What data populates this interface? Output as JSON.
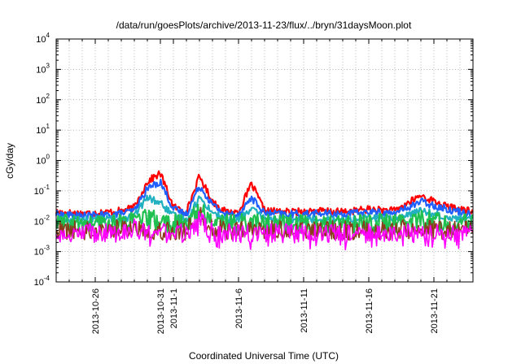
{
  "chart_data": {
    "type": "line",
    "title": "/data/run/goesPlots/archive/2013-11-23/flux/../bryn/31daysMoon.plot",
    "xlabel": "Coordinated Universal Time (UTC)",
    "ylabel": "cGy/day",
    "y_scale": "log",
    "ylim": [
      0.0001,
      10000
    ],
    "y_ticks": [
      {
        "mantissa": "10",
        "exponent": "-4",
        "value": 0.0001
      },
      {
        "mantissa": "10",
        "exponent": "-3",
        "value": 0.001
      },
      {
        "mantissa": "10",
        "exponent": "-2",
        "value": 0.01
      },
      {
        "mantissa": "10",
        "exponent": "-1",
        "value": 0.1
      },
      {
        "mantissa": "10",
        "exponent": "0",
        "value": 1
      },
      {
        "mantissa": "10",
        "exponent": "1",
        "value": 10
      },
      {
        "mantissa": "10",
        "exponent": "2",
        "value": 100
      },
      {
        "mantissa": "10",
        "exponent": "3",
        "value": 1000
      },
      {
        "mantissa": "10",
        "exponent": "4",
        "value": 10000
      }
    ],
    "xlim": [
      "2013-10-23",
      "2013-11-24"
    ],
    "x_ticks": [
      "2013-10-26",
      "2013-10-31",
      "2013-11-1",
      "2013-11-6",
      "2013-11-11",
      "2013-11-16",
      "2013-11-21"
    ],
    "grid": true,
    "series": [
      {
        "color": "#ff0000",
        "points": [
          [
            "2013-10-23",
            0.02
          ],
          [
            "2013-10-25",
            0.018
          ],
          [
            "2013-10-27",
            0.02
          ],
          [
            "2013-10-28",
            0.022
          ],
          [
            "2013-10-29",
            0.028
          ],
          [
            "2013-10-30",
            0.2
          ],
          [
            "2013-10-31",
            0.38
          ],
          [
            "2013-11-1",
            0.03
          ],
          [
            "2013-11-2",
            0.02
          ],
          [
            "2013-11-3",
            0.3
          ],
          [
            "2013-11-4",
            0.045
          ],
          [
            "2013-11-5",
            0.02
          ],
          [
            "2013-11-6",
            0.02
          ],
          [
            "2013-11-7",
            0.17
          ],
          [
            "2013-11-8",
            0.022
          ],
          [
            "2013-11-10",
            0.02
          ],
          [
            "2013-11-12",
            0.022
          ],
          [
            "2013-11-14",
            0.02
          ],
          [
            "2013-11-16",
            0.025
          ],
          [
            "2013-11-18",
            0.022
          ],
          [
            "2013-11-20",
            0.07
          ],
          [
            "2013-11-22",
            0.03
          ],
          [
            "2013-11-24",
            0.02
          ]
        ]
      },
      {
        "color": "#1f5fff",
        "points": [
          [
            "2013-10-23",
            0.017
          ],
          [
            "2013-10-25",
            0.015
          ],
          [
            "2013-10-27",
            0.016
          ],
          [
            "2013-10-28",
            0.018
          ],
          [
            "2013-10-29",
            0.022
          ],
          [
            "2013-10-30",
            0.12
          ],
          [
            "2013-10-31",
            0.2
          ],
          [
            "2013-11-1",
            0.025
          ],
          [
            "2013-11-2",
            0.017
          ],
          [
            "2013-11-3",
            0.15
          ],
          [
            "2013-11-4",
            0.035
          ],
          [
            "2013-11-5",
            0.017
          ],
          [
            "2013-11-6",
            0.017
          ],
          [
            "2013-11-7",
            0.06
          ],
          [
            "2013-11-8",
            0.018
          ],
          [
            "2013-11-10",
            0.017
          ],
          [
            "2013-11-12",
            0.018
          ],
          [
            "2013-11-14",
            0.017
          ],
          [
            "2013-11-16",
            0.02
          ],
          [
            "2013-11-18",
            0.018
          ],
          [
            "2013-11-20",
            0.045
          ],
          [
            "2013-11-22",
            0.025
          ],
          [
            "2013-11-24",
            0.017
          ]
        ]
      },
      {
        "color": "#20b0c0",
        "points": [
          [
            "2013-10-23",
            0.012
          ],
          [
            "2013-10-25",
            0.011
          ],
          [
            "2013-10-27",
            0.012
          ],
          [
            "2013-10-28",
            0.012
          ],
          [
            "2013-10-29",
            0.015
          ],
          [
            "2013-10-30",
            0.06
          ],
          [
            "2013-10-31",
            0.04
          ],
          [
            "2013-11-1",
            0.015
          ],
          [
            "2013-11-2",
            0.011
          ],
          [
            "2013-11-3",
            0.06
          ],
          [
            "2013-11-4",
            0.02
          ],
          [
            "2013-11-5",
            0.011
          ],
          [
            "2013-11-6",
            0.011
          ],
          [
            "2013-11-7",
            0.025
          ],
          [
            "2013-11-8",
            0.012
          ],
          [
            "2013-11-10",
            0.011
          ],
          [
            "2013-11-12",
            0.012
          ],
          [
            "2013-11-14",
            0.011
          ],
          [
            "2013-11-16",
            0.013
          ],
          [
            "2013-11-18",
            0.012
          ],
          [
            "2013-11-20",
            0.022
          ],
          [
            "2013-11-22",
            0.014
          ],
          [
            "2013-11-24",
            0.011
          ]
        ]
      },
      {
        "color": "#20c050",
        "points": [
          [
            "2013-10-23",
            0.008
          ],
          [
            "2013-10-25",
            0.008
          ],
          [
            "2013-10-27",
            0.008
          ],
          [
            "2013-10-28",
            0.009
          ],
          [
            "2013-10-29",
            0.01
          ],
          [
            "2013-10-30",
            0.012
          ],
          [
            "2013-10-31",
            0.01
          ],
          [
            "2013-11-1",
            0.008
          ],
          [
            "2013-11-2",
            0.008
          ],
          [
            "2013-11-3",
            0.025
          ],
          [
            "2013-11-4",
            0.01
          ],
          [
            "2013-11-5",
            0.008
          ],
          [
            "2013-11-6",
            0.008
          ],
          [
            "2013-11-7",
            0.01
          ],
          [
            "2013-11-8",
            0.008
          ],
          [
            "2013-11-10",
            0.008
          ],
          [
            "2013-11-12",
            0.008
          ],
          [
            "2013-11-14",
            0.008
          ],
          [
            "2013-11-16",
            0.009
          ],
          [
            "2013-11-18",
            0.008
          ],
          [
            "2013-11-20",
            0.012
          ],
          [
            "2013-11-22",
            0.009
          ],
          [
            "2013-11-24",
            0.008
          ]
        ]
      },
      {
        "color": "#8b3a1a",
        "points": [
          [
            "2013-10-23",
            0.005
          ],
          [
            "2013-10-25",
            0.005
          ],
          [
            "2013-10-27",
            0.005
          ],
          [
            "2013-10-28",
            0.006
          ],
          [
            "2013-10-29",
            0.006
          ],
          [
            "2013-10-30",
            0.005
          ],
          [
            "2013-10-31",
            0.005
          ],
          [
            "2013-11-1",
            0.005
          ],
          [
            "2013-11-2",
            0.005
          ],
          [
            "2013-11-3",
            0.015
          ],
          [
            "2013-11-4",
            0.006
          ],
          [
            "2013-11-5",
            0.005
          ],
          [
            "2013-11-6",
            0.005
          ],
          [
            "2013-11-7",
            0.005
          ],
          [
            "2013-11-8",
            0.005
          ],
          [
            "2013-11-10",
            0.005
          ],
          [
            "2013-11-12",
            0.005
          ],
          [
            "2013-11-14",
            0.005
          ],
          [
            "2013-11-16",
            0.005
          ],
          [
            "2013-11-18",
            0.005
          ],
          [
            "2013-11-20",
            0.006
          ],
          [
            "2013-11-22",
            0.005
          ],
          [
            "2013-11-24",
            0.005
          ]
        ]
      },
      {
        "color": "#ff00ff",
        "points": [
          [
            "2013-10-23",
            0.004
          ],
          [
            "2013-10-25",
            0.004
          ],
          [
            "2013-10-27",
            0.004
          ],
          [
            "2013-10-28",
            0.004
          ],
          [
            "2013-10-29",
            0.006
          ],
          [
            "2013-10-30",
            0.004
          ],
          [
            "2013-10-31",
            0.004
          ],
          [
            "2013-11-1",
            0.004
          ],
          [
            "2013-11-2",
            0.004
          ],
          [
            "2013-11-3",
            0.012
          ],
          [
            "2013-11-4",
            0.004
          ],
          [
            "2013-11-5",
            0.004
          ],
          [
            "2013-11-6",
            0.004
          ],
          [
            "2013-11-7",
            0.004
          ],
          [
            "2013-11-8",
            0.004
          ],
          [
            "2013-11-10",
            0.004
          ],
          [
            "2013-11-12",
            0.004
          ],
          [
            "2013-11-14",
            0.004
          ],
          [
            "2013-11-16",
            0.004
          ],
          [
            "2013-11-18",
            0.004
          ],
          [
            "2013-11-20",
            0.004
          ],
          [
            "2013-11-22",
            0.004
          ],
          [
            "2013-11-24",
            0.004
          ]
        ]
      }
    ]
  }
}
